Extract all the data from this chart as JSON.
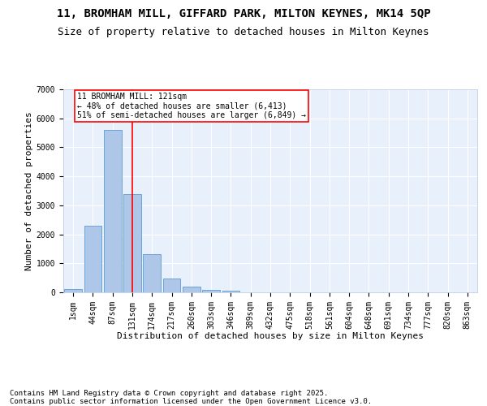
{
  "title_line1": "11, BROMHAM MILL, GIFFARD PARK, MILTON KEYNES, MK14 5QP",
  "title_line2": "Size of property relative to detached houses in Milton Keynes",
  "xlabel": "Distribution of detached houses by size in Milton Keynes",
  "ylabel": "Number of detached properties",
  "bar_labels": [
    "1sqm",
    "44sqm",
    "87sqm",
    "131sqm",
    "174sqm",
    "217sqm",
    "260sqm",
    "303sqm",
    "346sqm",
    "389sqm",
    "432sqm",
    "475sqm",
    "518sqm",
    "561sqm",
    "604sqm",
    "648sqm",
    "691sqm",
    "734sqm",
    "777sqm",
    "820sqm",
    "863sqm"
  ],
  "bar_values": [
    100,
    2300,
    5600,
    3400,
    1320,
    490,
    185,
    90,
    55,
    0,
    0,
    0,
    0,
    0,
    0,
    0,
    0,
    0,
    0,
    0,
    0
  ],
  "bar_color": "#aec6e8",
  "bar_edgecolor": "#5b9bd5",
  "vline_index": 3,
  "vline_color": "red",
  "annotation_text": "11 BROMHAM MILL: 121sqm\n← 48% of detached houses are smaller (6,413)\n51% of semi-detached houses are larger (6,849) →",
  "annotation_box_color": "white",
  "annotation_box_edgecolor": "red",
  "ylim": [
    0,
    7000
  ],
  "yticks": [
    0,
    1000,
    2000,
    3000,
    4000,
    5000,
    6000,
    7000
  ],
  "background_color": "#e8f0fb",
  "grid_color": "white",
  "footer": "Contains HM Land Registry data © Crown copyright and database right 2025.\nContains public sector information licensed under the Open Government Licence v3.0.",
  "title_fontsize": 10,
  "subtitle_fontsize": 9,
  "axis_label_fontsize": 8,
  "tick_fontsize": 7,
  "annotation_fontsize": 7,
  "footer_fontsize": 6.5
}
